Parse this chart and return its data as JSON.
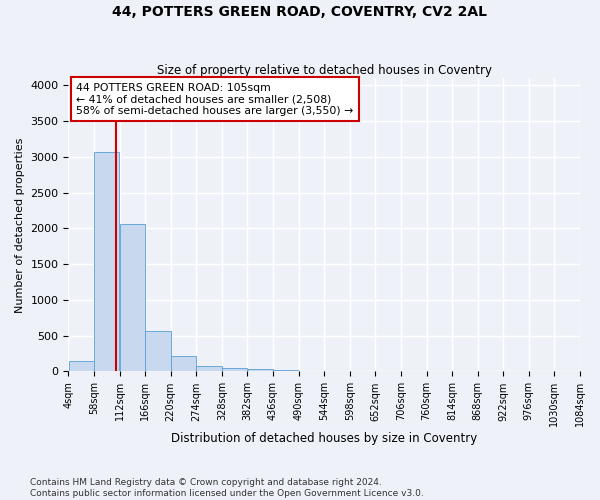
{
  "title": "44, POTTERS GREEN ROAD, COVENTRY, CV2 2AL",
  "subtitle": "Size of property relative to detached houses in Coventry",
  "xlabel": "Distribution of detached houses by size in Coventry",
  "ylabel": "Number of detached properties",
  "bar_color": "#c8d8ee",
  "bar_edge_color": "#5a9fd4",
  "bin_edges": [
    4,
    58,
    112,
    166,
    220,
    274,
    328,
    382,
    436,
    490,
    544,
    598,
    652,
    706,
    760,
    814,
    868,
    922,
    976,
    1030,
    1084
  ],
  "bar_heights": [
    150,
    3070,
    2060,
    560,
    215,
    80,
    55,
    30,
    15,
    8,
    5,
    4,
    3,
    3,
    2,
    2,
    1,
    1,
    1,
    1
  ],
  "property_size": 105,
  "vline_color": "#cc0000",
  "annotation_line1": "44 POTTERS GREEN ROAD: 105sqm",
  "annotation_line2": "← 41% of detached houses are smaller (2,508)",
  "annotation_line3": "58% of semi-detached houses are larger (3,550) →",
  "annotation_box_color": "#ffffff",
  "annotation_box_edge": "#cc0000",
  "ylim": [
    0,
    4100
  ],
  "yticks": [
    0,
    500,
    1000,
    1500,
    2000,
    2500,
    3000,
    3500,
    4000
  ],
  "footer_line1": "Contains HM Land Registry data © Crown copyright and database right 2024.",
  "footer_line2": "Contains public sector information licensed under the Open Government Licence v3.0.",
  "bg_color": "#eef2f8",
  "grid_color": "#ffffff"
}
